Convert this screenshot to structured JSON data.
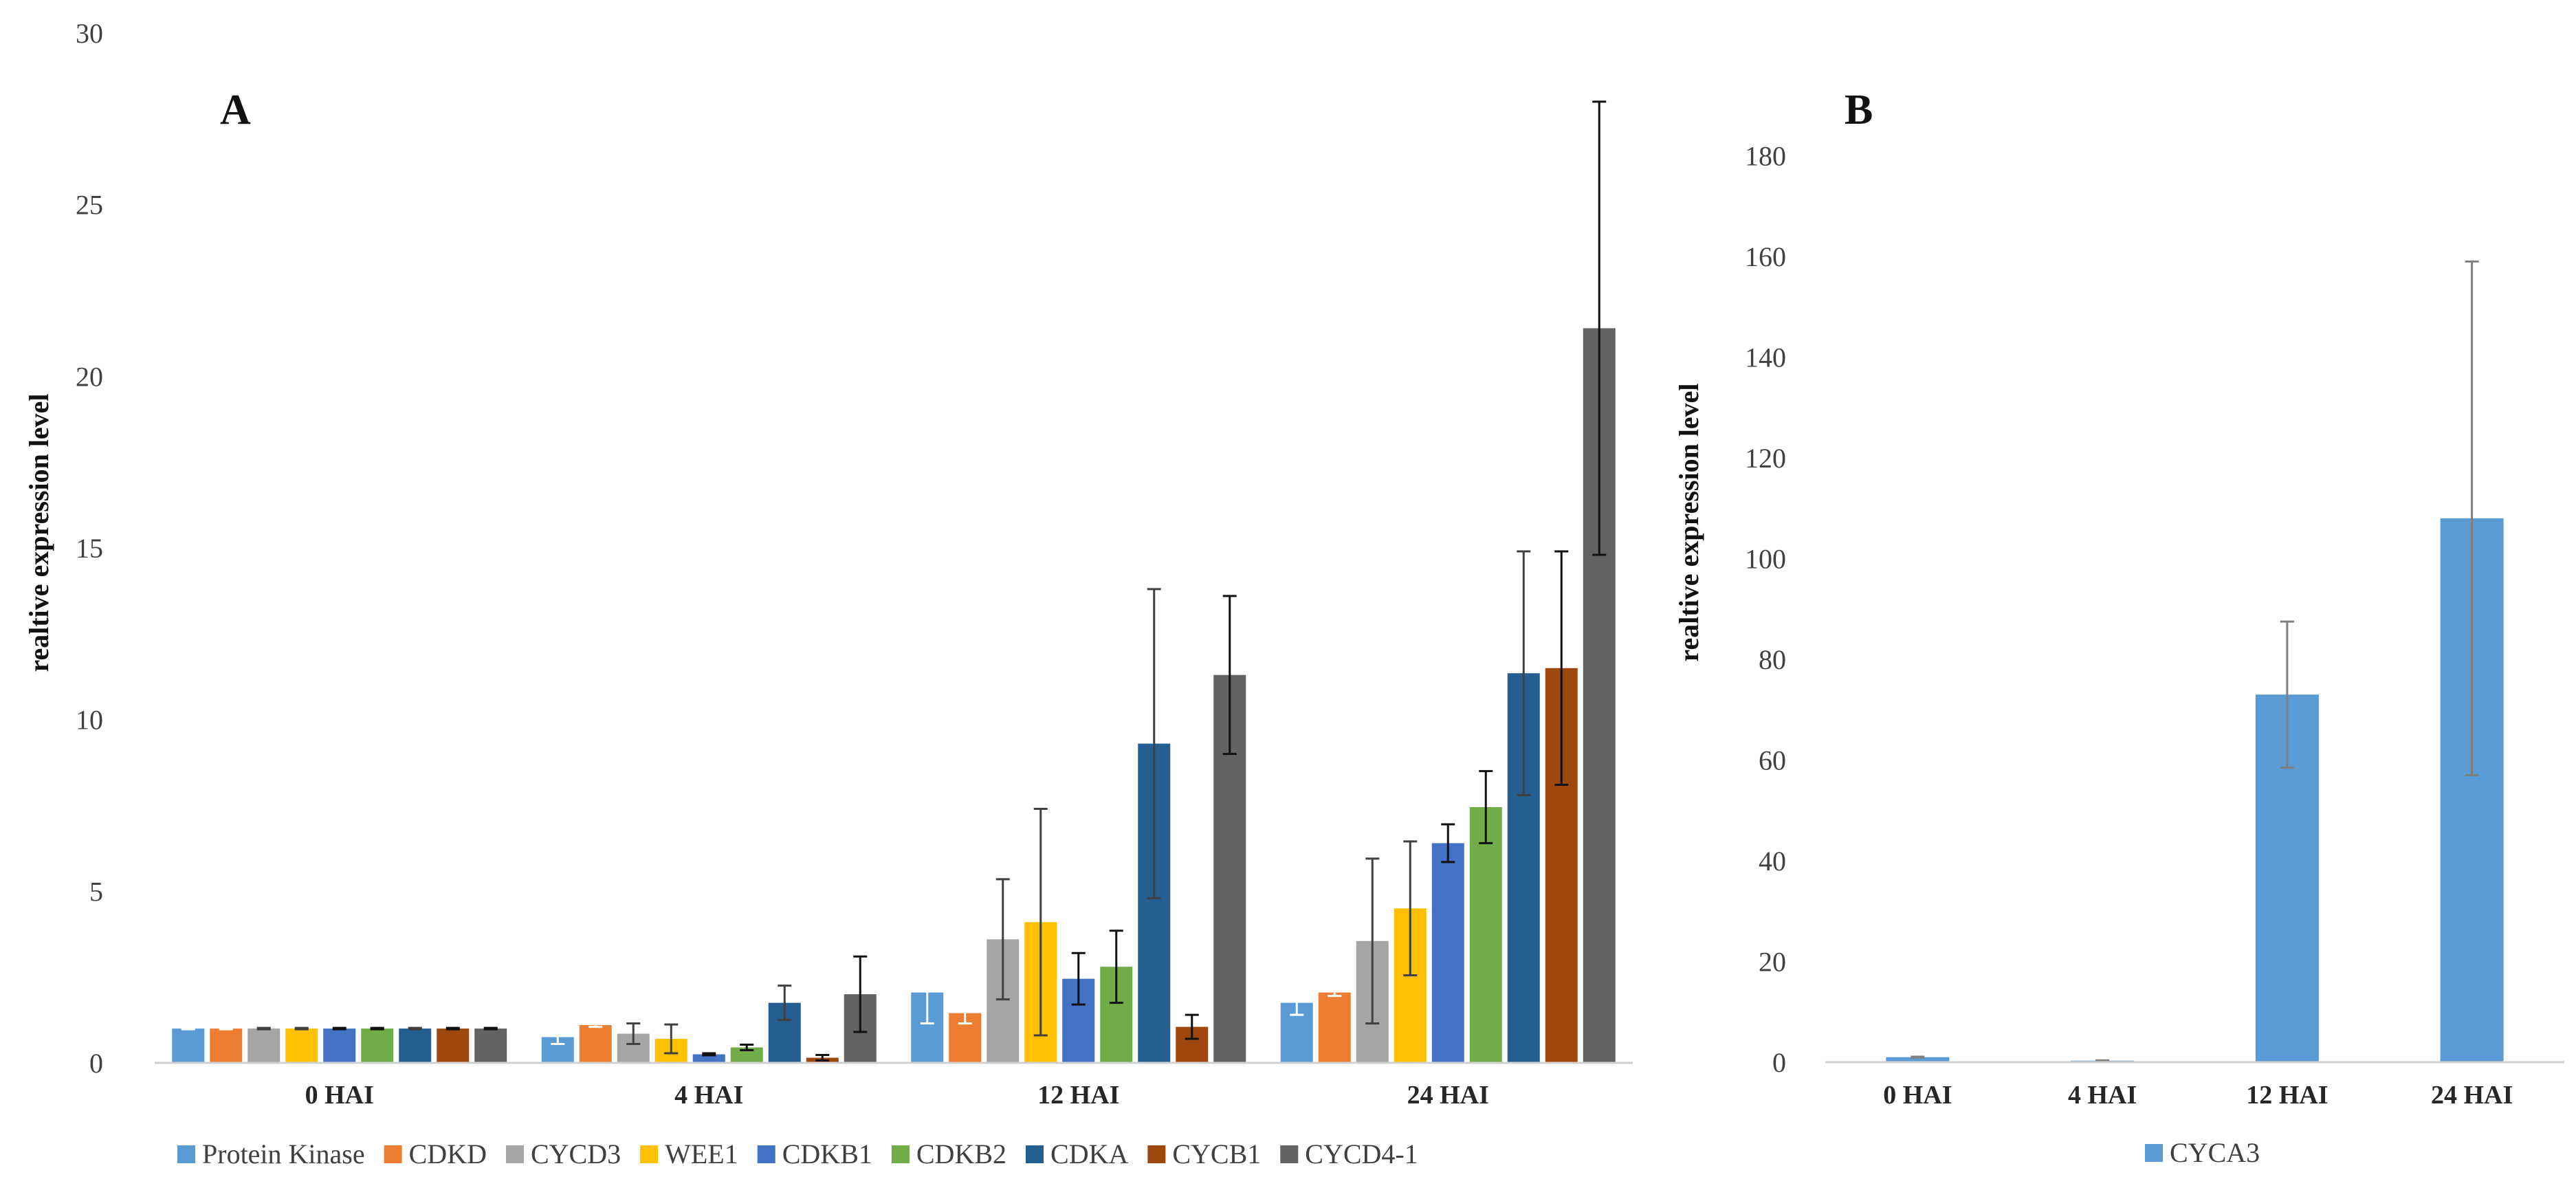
{
  "chart_data": [
    {
      "type": "bar",
      "panel_label": "A",
      "title": "",
      "xlabel": "",
      "ylabel": "realtive expression level",
      "ylim": [
        0,
        30
      ],
      "yticks": [
        "0",
        "5",
        "10",
        "15",
        "20",
        "25",
        "30"
      ],
      "ytick_values": [
        0,
        5,
        10,
        15,
        20,
        25,
        30
      ],
      "categories": [
        "0 HAI",
        "4 HAI",
        "12 HAI",
        "24 HAI"
      ],
      "legend_position": "bottom",
      "series": [
        {
          "name": "Protein Kinase",
          "color": "#5B9BD5",
          "errcolor": "#ffffff",
          "values": [
            1.0,
            0.75,
            2.05,
            1.75
          ],
          "errors": [
            0.02,
            0.2,
            0.9,
            0.35
          ]
        },
        {
          "name": "CDKD",
          "color": "#ED7D31",
          "errcolor": "#ffffff",
          "values": [
            1.0,
            1.1,
            1.45,
            2.05
          ],
          "errors": [
            0.02,
            0.05,
            0.3,
            0.1
          ]
        },
        {
          "name": "CYCD3",
          "color": "#A5A5A5",
          "errcolor": "#404040",
          "values": [
            1.0,
            0.85,
            3.6,
            3.55
          ],
          "errors": [
            0.02,
            0.3,
            1.75,
            2.4
          ]
        },
        {
          "name": "WEE1",
          "color": "#FFC000",
          "errcolor": "#404040",
          "values": [
            1.0,
            0.7,
            4.1,
            4.5
          ],
          "errors": [
            0.02,
            0.42,
            3.3,
            1.95
          ]
        },
        {
          "name": "CDKB1",
          "color": "#4472C4",
          "errcolor": "#111111",
          "values": [
            1.0,
            0.25,
            2.45,
            6.4
          ],
          "errors": [
            0.02,
            0.03,
            0.75,
            0.55
          ]
        },
        {
          "name": "CDKB2",
          "color": "#70AD47",
          "errcolor": "#111111",
          "values": [
            1.0,
            0.45,
            2.8,
            7.45
          ],
          "errors": [
            0.02,
            0.08,
            1.05,
            1.05
          ]
        },
        {
          "name": "CDKA",
          "color": "#255E91",
          "errcolor": "#404040",
          "values": [
            1.0,
            1.75,
            9.3,
            11.35
          ],
          "errors": [
            0.02,
            0.5,
            4.5,
            3.55
          ]
        },
        {
          "name": "CYCB1",
          "color": "#9E480E",
          "errcolor": "#111111",
          "values": [
            1.0,
            0.15,
            1.05,
            11.5
          ],
          "errors": [
            0.02,
            0.08,
            0.35,
            3.4
          ]
        },
        {
          "name": "CYCD4-1",
          "color": "#636363",
          "errcolor": "#111111",
          "values": [
            1.0,
            2.0,
            11.3,
            21.4
          ],
          "errors": [
            0.02,
            1.1,
            2.3,
            6.6
          ]
        }
      ]
    },
    {
      "type": "bar",
      "panel_label": "B",
      "title": "",
      "xlabel": "",
      "ylabel": "realtive expression level",
      "ylim": [
        0,
        190
      ],
      "yticks": [
        "0",
        "20",
        "40",
        "60",
        "80",
        "100",
        "120",
        "140",
        "160",
        "180"
      ],
      "ytick_values": [
        0,
        20,
        40,
        60,
        80,
        100,
        120,
        140,
        160,
        180
      ],
      "categories": [
        "0 HAI",
        "4 HAI",
        "12 HAI",
        "24 HAI"
      ],
      "legend_position": "bottom",
      "series": [
        {
          "name": "CYCA3",
          "color": "#5B9BD5",
          "errcolor": "#7f7f7f",
          "values": [
            1.0,
            0.3,
            73,
            108
          ],
          "errors": [
            0.1,
            0.05,
            14.5,
            51
          ]
        }
      ]
    }
  ]
}
